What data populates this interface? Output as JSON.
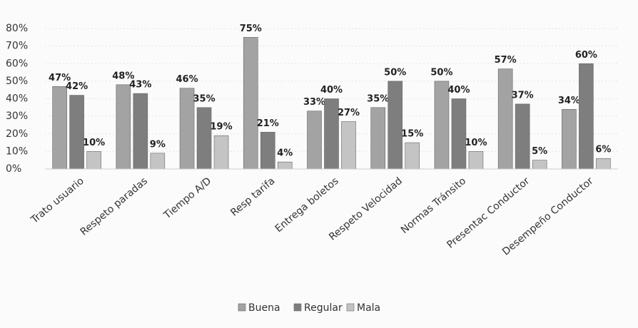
{
  "chart_data": {
    "type": "bar",
    "categories": [
      "Trato usuario",
      "Respeto paradas",
      "Tiempo A/D",
      "Resp tarifa",
      "Entrega boletos",
      "Respeto Velocidad",
      "Normas Tránsito",
      "Presentac Conductor",
      "Desempeño Conductor"
    ],
    "series": [
      {
        "name": "Buena",
        "color": "#a3a3a3",
        "values": [
          47,
          48,
          46,
          75,
          33,
          35,
          50,
          57,
          34
        ],
        "value_labels": [
          "47%",
          "48%",
          "46%",
          "75%",
          "33%",
          "35%",
          "50%",
          "57%",
          "34%"
        ]
      },
      {
        "name": "Regular",
        "color": "#7e7e7e",
        "values": [
          42,
          43,
          35,
          21,
          40,
          50,
          40,
          37,
          60
        ],
        "value_labels": [
          "42%",
          "43%",
          "35%",
          "21%",
          "40%",
          "50%",
          "40%",
          "37%",
          "60%"
        ]
      },
      {
        "name": "Mala",
        "color": "#c4c4c4",
        "values": [
          10,
          9,
          19,
          4,
          27,
          15,
          10,
          5,
          6
        ],
        "value_labels": [
          "10%",
          "9%",
          "19%",
          "4%",
          "27%",
          "15%",
          "10%",
          "5%",
          "6%"
        ]
      }
    ],
    "ylim": [
      0,
      80
    ],
    "yticks": [
      {
        "value": 0,
        "label": "0%"
      },
      {
        "value": 10,
        "label": "10%"
      },
      {
        "value": 20,
        "label": "20%"
      },
      {
        "value": 30,
        "label": "30%"
      },
      {
        "value": 40,
        "label": "40%"
      },
      {
        "value": 50,
        "label": "50%"
      },
      {
        "value": 60,
        "label": "60%"
      },
      {
        "value": 70,
        "label": "70%"
      },
      {
        "value": 80,
        "label": "80%"
      }
    ],
    "legend": "bottom"
  }
}
